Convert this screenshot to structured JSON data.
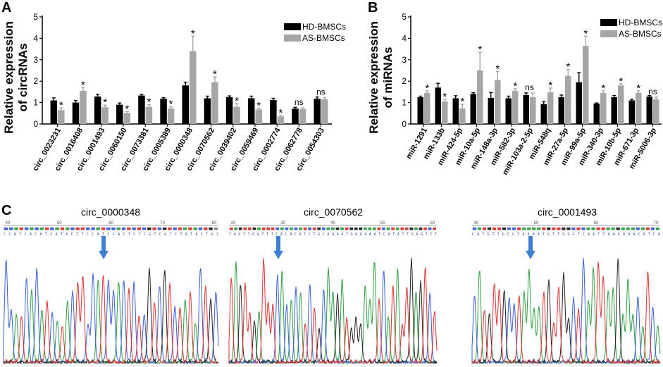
{
  "panels": {
    "a_letter": "A",
    "b_letter": "B",
    "c_letter": "C"
  },
  "colors": {
    "hd": "#000000",
    "as": "#a6a6a6",
    "trace_a": "#2f9e44",
    "trace_c": "#3a5ed8",
    "trace_g": "#222222",
    "trace_t": "#e03131",
    "arrow": "#3d7fd1"
  },
  "chart_data": [
    {
      "type": "bar",
      "panel": "A",
      "title": "",
      "ylabel_line1": "Relative expression",
      "ylabel_line2": "of circRNAs",
      "xlabel": "",
      "ylim": [
        0,
        5
      ],
      "yticks": [
        0,
        1,
        2,
        3,
        4,
        5
      ],
      "legend_position": "top-right",
      "categories": [
        "circ_0023231",
        "circ_0016408",
        "circ_0001493",
        "circ_0060150",
        "circ_0073381",
        "circ_0005389",
        "circ_0000348",
        "circ_0070562",
        "circ_0039402",
        "circ_0059469",
        "circ_0002774",
        "circ_0062778",
        "circ_0054303"
      ],
      "series": [
        {
          "name": "HD-BMSCs",
          "values": [
            1.1,
            1.0,
            1.28,
            0.9,
            1.33,
            1.18,
            1.8,
            1.2,
            1.25,
            1.2,
            1.12,
            0.72,
            1.18
          ],
          "errors": [
            0.12,
            0.1,
            0.1,
            0.08,
            0.05,
            0.05,
            0.15,
            0.1,
            0.06,
            0.1,
            0.08,
            0.06,
            0.08
          ]
        },
        {
          "name": "AS-BMSCs",
          "values": [
            0.65,
            1.55,
            0.78,
            0.52,
            0.8,
            0.72,
            3.4,
            1.95,
            0.8,
            0.68,
            0.35,
            0.7,
            1.15
          ],
          "errors": [
            0.1,
            0.15,
            0.1,
            0.06,
            0.1,
            0.08,
            0.7,
            0.25,
            0.15,
            0.06,
            0.05,
            0.05,
            0.08
          ]
        }
      ],
      "significance": [
        "*",
        "*",
        "*",
        "*",
        "*",
        "*",
        "*",
        "*",
        "*",
        "*",
        "*",
        "ns",
        "ns"
      ]
    },
    {
      "type": "bar",
      "panel": "B",
      "title": "",
      "ylabel_line1": "Relative expression",
      "ylabel_line2": "of miRNAs",
      "xlabel": "",
      "ylim": [
        0,
        5
      ],
      "yticks": [
        0,
        1,
        2,
        3,
        4,
        5
      ],
      "legend_position": "top-right",
      "categories": [
        "miR-1291",
        "miR-133b",
        "miR-424-5p",
        "miR-10a-5p",
        "miR-148a-3p",
        "miR-582-3p",
        "miR-103a-2-5p",
        "miR-548q",
        "miR-27a-5p",
        "miR-99a-5p",
        "miR-340-3p",
        "miR-10b-5p",
        "miR-671-3p",
        "miR-5006-3p"
      ],
      "series": [
        {
          "name": "HD-BMSCs",
          "values": [
            1.25,
            1.7,
            1.2,
            1.4,
            1.22,
            1.2,
            1.35,
            0.92,
            1.25,
            1.95,
            0.95,
            1.25,
            1.1,
            1.28
          ],
          "errors": [
            0.05,
            0.2,
            0.12,
            0.06,
            0.25,
            0.1,
            0.1,
            0.12,
            0.1,
            0.45,
            0.03,
            0.08,
            0.05,
            0.05
          ]
        },
        {
          "name": "AS-BMSCs",
          "values": [
            1.45,
            1.05,
            0.72,
            2.5,
            2.05,
            1.55,
            1.25,
            1.48,
            2.25,
            3.65,
            1.45,
            1.8,
            1.45,
            1.15
          ],
          "errors": [
            0.1,
            0.1,
            0.2,
            0.85,
            0.4,
            0.1,
            0.2,
            0.2,
            0.3,
            0.45,
            0.1,
            0.08,
            0.1,
            0.1
          ]
        }
      ],
      "significance": [
        "*",
        "*",
        "*",
        "*",
        "*",
        "*",
        "ns",
        "*",
        "*",
        "*",
        "*",
        "*",
        "*",
        "ns"
      ]
    }
  ],
  "chromatograms": [
    {
      "title": "circ_0000348",
      "sequence": "CCATCACATCATACTTCCATCCACTCTCGTCGTCTATACTGJ",
      "positions": [
        "40",
        "50",
        "60",
        "70",
        "80"
      ]
    },
    {
      "title": "circ_0070562",
      "sequence": "TAGTTGATTTCACACATCTGCAAGATGGGAAATCATATTGAGTCT",
      "positions": [
        "20",
        "30",
        "40",
        "50",
        "60"
      ]
    },
    {
      "title": "circ_0001493",
      "sequence": "CATGTTGCCTAAAATGTTGGCTCAATTAAGAAACATCA",
      "positions": [
        "40",
        "50",
        "60",
        "70"
      ]
    }
  ]
}
